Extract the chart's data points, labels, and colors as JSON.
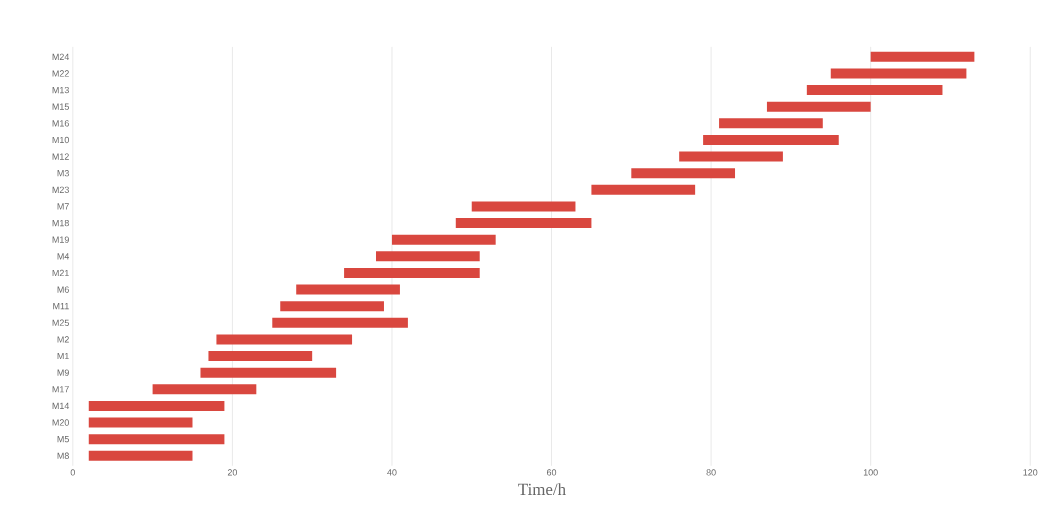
{
  "chart_data": {
    "type": "bar",
    "orientation": "horizontal",
    "xlabel": "Time/h",
    "categories": [
      "M24",
      "M22",
      "M13",
      "M15",
      "M16",
      "M10",
      "M12",
      "M3",
      "M23",
      "M7",
      "M18",
      "M19",
      "M4",
      "M21",
      "M6",
      "M11",
      "M25",
      "M2",
      "M1",
      "M9",
      "M17",
      "M14",
      "M20",
      "M5",
      "M8"
    ],
    "base": [
      100,
      95,
      92,
      87,
      81,
      79,
      76,
      70,
      65,
      50,
      48,
      40,
      38,
      34,
      28,
      26,
      25,
      18,
      17,
      16,
      10,
      2,
      2,
      2,
      2
    ],
    "values": [
      13,
      17,
      17,
      13,
      13,
      17,
      13,
      13,
      13,
      13,
      17,
      13,
      13,
      17,
      13,
      13,
      17,
      17,
      13,
      17,
      13,
      17,
      13,
      17,
      13
    ],
    "color": "#d9473f",
    "xlim": [
      0,
      120
    ],
    "xticks": [
      0,
      20,
      40,
      60,
      80,
      100,
      120
    ],
    "grid": "x"
  }
}
